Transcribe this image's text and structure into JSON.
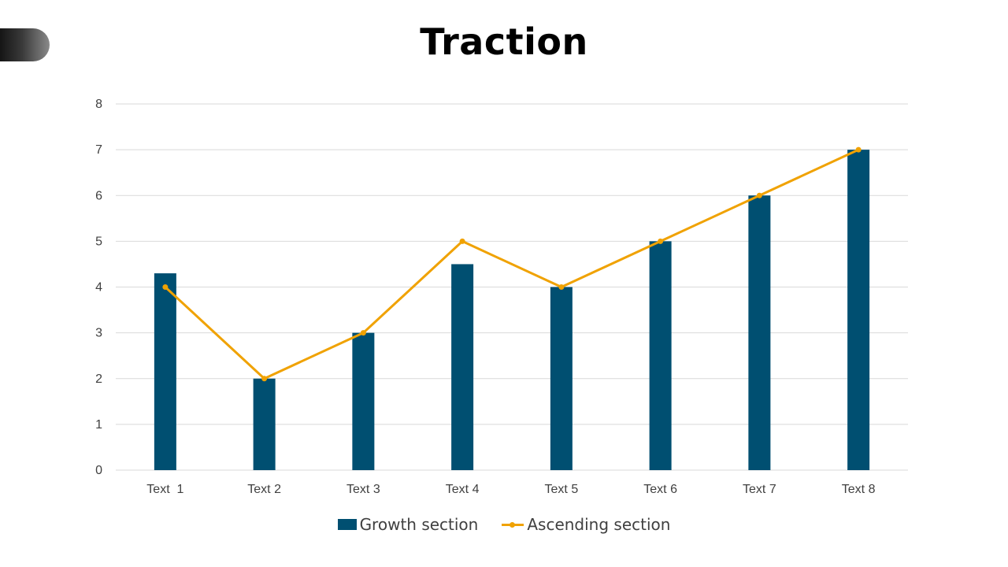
{
  "slide": {
    "title": "Traction"
  },
  "colors": {
    "bar": "#004f71",
    "line": "#f0a202",
    "grid": "#d9d9d9",
    "tab_dark": "#151515"
  },
  "chart_data": {
    "type": "bar",
    "title": "Traction",
    "categories": [
      "Text  1",
      "Text 2",
      "Text 3",
      "Text 4",
      "Text 5",
      "Text 6",
      "Text 7",
      "Text 8"
    ],
    "series": [
      {
        "name": "Growth section",
        "kind": "bar",
        "values": [
          4.3,
          2,
          3,
          4.5,
          4,
          5,
          6,
          7
        ]
      },
      {
        "name": "Ascending section",
        "kind": "line",
        "values": [
          4,
          2,
          3,
          5,
          4,
          5,
          6,
          7
        ]
      }
    ],
    "ylim": [
      0,
      8
    ],
    "yticks": [
      "0",
      "1",
      "2",
      "3",
      "4",
      "5",
      "6",
      "7",
      "8"
    ],
    "xlabel": "",
    "ylabel": "",
    "grid": true,
    "legend": "bottom-center"
  }
}
